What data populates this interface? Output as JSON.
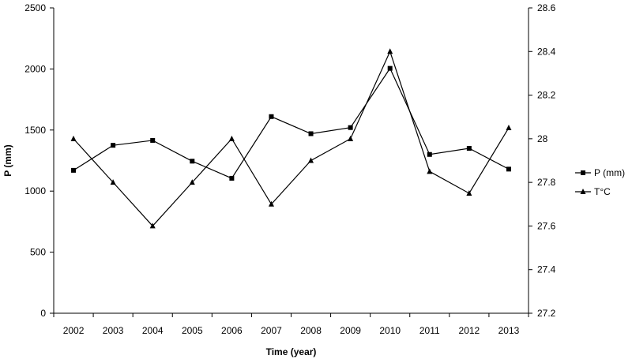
{
  "chart_data": {
    "type": "line",
    "categories": [
      "2002",
      "2003",
      "2004",
      "2005",
      "2006",
      "2007",
      "2008",
      "2009",
      "2010",
      "2011",
      "2012",
      "2013"
    ],
    "xlabel": "Time (year)",
    "ylabel": "P (mm)",
    "y_left_range": [
      0,
      2500
    ],
    "y_left_ticks": [
      "0",
      "500",
      "1000",
      "1500",
      "2000",
      "2500"
    ],
    "y_right_range": [
      27.2,
      28.6
    ],
    "y_right_ticks": [
      "27.2",
      "27.4",
      "27.6",
      "27.8",
      "28",
      "28.2",
      "28.4",
      "28.6"
    ],
    "grid": false,
    "legend_position": "right",
    "series": [
      {
        "name": "P (mm)",
        "axis": "left",
        "marker": "square",
        "values": [
          1170,
          1375,
          1415,
          1245,
          1105,
          1610,
          1470,
          1520,
          2005,
          1300,
          1350,
          1180
        ]
      },
      {
        "name": "T°C",
        "axis": "right",
        "marker": "triangle",
        "values": [
          28.0,
          27.8,
          27.6,
          27.8,
          28.0,
          27.7,
          27.9,
          28.0,
          28.4,
          27.85,
          27.75,
          28.05
        ]
      }
    ]
  }
}
